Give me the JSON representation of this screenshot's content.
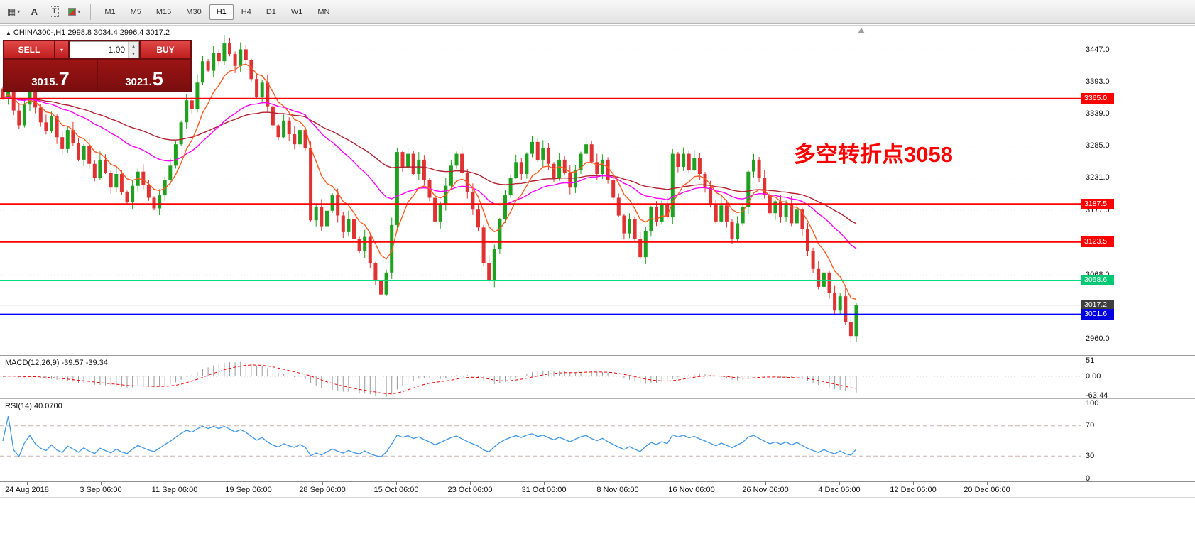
{
  "colors": {
    "bull": "#1fa11f",
    "bear": "#e03232",
    "ma_fast": "#ff5a1e",
    "ma_mid": "#ff00ff",
    "ma_slow": "#b22230",
    "macd_hist": "#9a9a9a",
    "macd_signal": "#ff0000",
    "rsi": "#3d96e8",
    "annotation": "#fe0000"
  },
  "toolbar": {
    "dropdown_glyph": "▾",
    "icons": [
      {
        "name": "chart-windows-icon",
        "glyph": "▦"
      },
      {
        "name": "font-tool-icon",
        "glyph": "A"
      },
      {
        "name": "text-tool-icon",
        "glyph": "T"
      },
      {
        "name": "colors-icon",
        "glyph": ""
      }
    ],
    "timeframes": [
      {
        "label": "M1",
        "active": false
      },
      {
        "label": "M5",
        "active": false
      },
      {
        "label": "M15",
        "active": false
      },
      {
        "label": "M30",
        "active": false
      },
      {
        "label": "H1",
        "active": true
      },
      {
        "label": "H4",
        "active": false
      },
      {
        "label": "D1",
        "active": false
      },
      {
        "label": "W1",
        "active": false
      },
      {
        "label": "MN",
        "active": false
      }
    ]
  },
  "symbol_header": {
    "marker": "▲",
    "text": "CHINA300-,H1  2998.8 3034.4 2996.4 3017.2"
  },
  "trade_panel": {
    "sell_label": "SELL",
    "buy_label": "BUY",
    "volume": "1.00",
    "spinner_up": "▴",
    "spinner_down": "▾",
    "sell_price_main": "3015.",
    "sell_price_big": "7",
    "buy_price_main": "3021.",
    "buy_price_big": "5"
  },
  "annotation": {
    "text": "多空转折点3058"
  },
  "price_axis": {
    "ticks": [
      "3447.0",
      "3393.0",
      "3339.0",
      "3285.0",
      "3231.0",
      "3177.0",
      "3068.0",
      "2960.0"
    ]
  },
  "levels": [
    {
      "value": 3365.0,
      "label": "3365.0",
      "line_color": "#ff0000",
      "line_width": 2,
      "flag_color": "#ff0000"
    },
    {
      "value": 3187.5,
      "label": "3187.5",
      "line_color": "#ff0000",
      "line_width": 2,
      "flag_color": "#ff0000"
    },
    {
      "value": 3123.5,
      "label": "3123.5",
      "line_color": "#ff0000",
      "line_width": 2,
      "flag_color": "#ff0000"
    },
    {
      "value": 3058.6,
      "label": "3058.6",
      "line_color": "#00d97e",
      "line_width": 2,
      "flag_color": "#00c873"
    },
    {
      "value": 3017.2,
      "label": "3017.2",
      "line_color": "#8a8a8a",
      "line_width": 1,
      "flag_color": "#3f3f3f"
    },
    {
      "value": 3001.6,
      "label": "3001.6",
      "line_color": "#0000ff",
      "line_width": 2,
      "flag_color": "#0000e0"
    }
  ],
  "macd_panel": {
    "label": "MACD(12,26,9) -39.57 -39.34",
    "axis": [
      {
        "label": "51",
        "value": 51
      },
      {
        "label": "0.00",
        "value": 0
      },
      {
        "label": "-63.44",
        "value": -63.44
      }
    ]
  },
  "rsi_panel": {
    "label": "RSI(14) 40.0700",
    "axis": [
      {
        "label": "100",
        "value": 100
      },
      {
        "label": "70",
        "value": 70
      },
      {
        "label": "30",
        "value": 30
      },
      {
        "label": "0",
        "value": 0
      }
    ],
    "levels": [
      70,
      30
    ]
  },
  "time_axis": {
    "labels": [
      "24 Aug 2018",
      "3 Sep 06:00",
      "11 Sep 06:00",
      "19 Sep 06:00",
      "28 Sep 06:00",
      "15 Oct 06:00",
      "23 Oct 06:00",
      "31 Oct 06:00",
      "8 Nov 06:00",
      "16 Nov 06:00",
      "26 Nov 06:00",
      "4 Dec 06:00",
      "12 Dec 06:00",
      "20 Dec 06:00"
    ]
  },
  "chart_data": [
    {
      "type": "candlestick",
      "title": "CHINA300- H1",
      "ohlc_last": {
        "open": 2998.8,
        "high": 3034.4,
        "low": 2996.4,
        "close": 3017.2
      },
      "y_axis_ticks": [
        3447,
        3393,
        3339,
        3285,
        3231,
        3177,
        3068,
        2960
      ],
      "visible_price_range": [
        2933,
        3488
      ],
      "horizontal_levels": [
        3365.0,
        3187.5,
        3123.5,
        3058.6,
        3017.2,
        3001.6
      ],
      "moving_averages": [
        {
          "period": 8,
          "color": "#ff5a1e"
        },
        {
          "period": 30,
          "color": "#ff00ff"
        },
        {
          "period": 60,
          "color": "#b22230"
        }
      ],
      "closes": [
        3365,
        3395,
        3345,
        3320,
        3355,
        3385,
        3350,
        3325,
        3310,
        3335,
        3300,
        3280,
        3312,
        3290,
        3262,
        3285,
        3255,
        3232,
        3262,
        3240,
        3215,
        3238,
        3208,
        3190,
        3218,
        3242,
        3220,
        3198,
        3180,
        3202,
        3228,
        3252,
        3288,
        3325,
        3362,
        3348,
        3392,
        3428,
        3412,
        3442,
        3428,
        3458,
        3440,
        3420,
        3448,
        3430,
        3398,
        3368,
        3392,
        3352,
        3320,
        3300,
        3328,
        3305,
        3288,
        3312,
        3282,
        3160,
        3182,
        3150,
        3176,
        3202,
        3168,
        3140,
        3162,
        3128,
        3108,
        3132,
        3088,
        3058,
        3035,
        3072,
        3152,
        3275,
        3248,
        3272,
        3238,
        3262,
        3228,
        3198,
        3158,
        3186,
        3218,
        3252,
        3272,
        3240,
        3208,
        3178,
        3148,
        3088,
        3058,
        3112,
        3162,
        3202,
        3232,
        3258,
        3238,
        3272,
        3292,
        3262,
        3282,
        3255,
        3232,
        3262,
        3240,
        3215,
        3245,
        3272,
        3288,
        3258,
        3238,
        3262,
        3228,
        3198,
        3168,
        3138,
        3162,
        3128,
        3098,
        3142,
        3182,
        3158,
        3188,
        3165,
        3272,
        3250,
        3272,
        3245,
        3265,
        3238,
        3215,
        3188,
        3158,
        3185,
        3158,
        3128,
        3155,
        3182,
        3242,
        3262,
        3232,
        3202,
        3172,
        3192,
        3165,
        3188,
        3155,
        3178,
        3145,
        3108,
        3078,
        3048,
        3072,
        3038,
        3008,
        3032,
        2988,
        2965,
        3017
      ]
    },
    {
      "type": "macd",
      "params": "12,26,9",
      "current_values": [
        -39.57,
        -39.34
      ],
      "axis": [
        51,
        0,
        -63.44
      ]
    },
    {
      "type": "rsi",
      "params": "14",
      "current_value": 40.07,
      "axis": [
        100,
        70,
        30,
        0
      ],
      "levels": [
        70,
        30
      ]
    }
  ]
}
